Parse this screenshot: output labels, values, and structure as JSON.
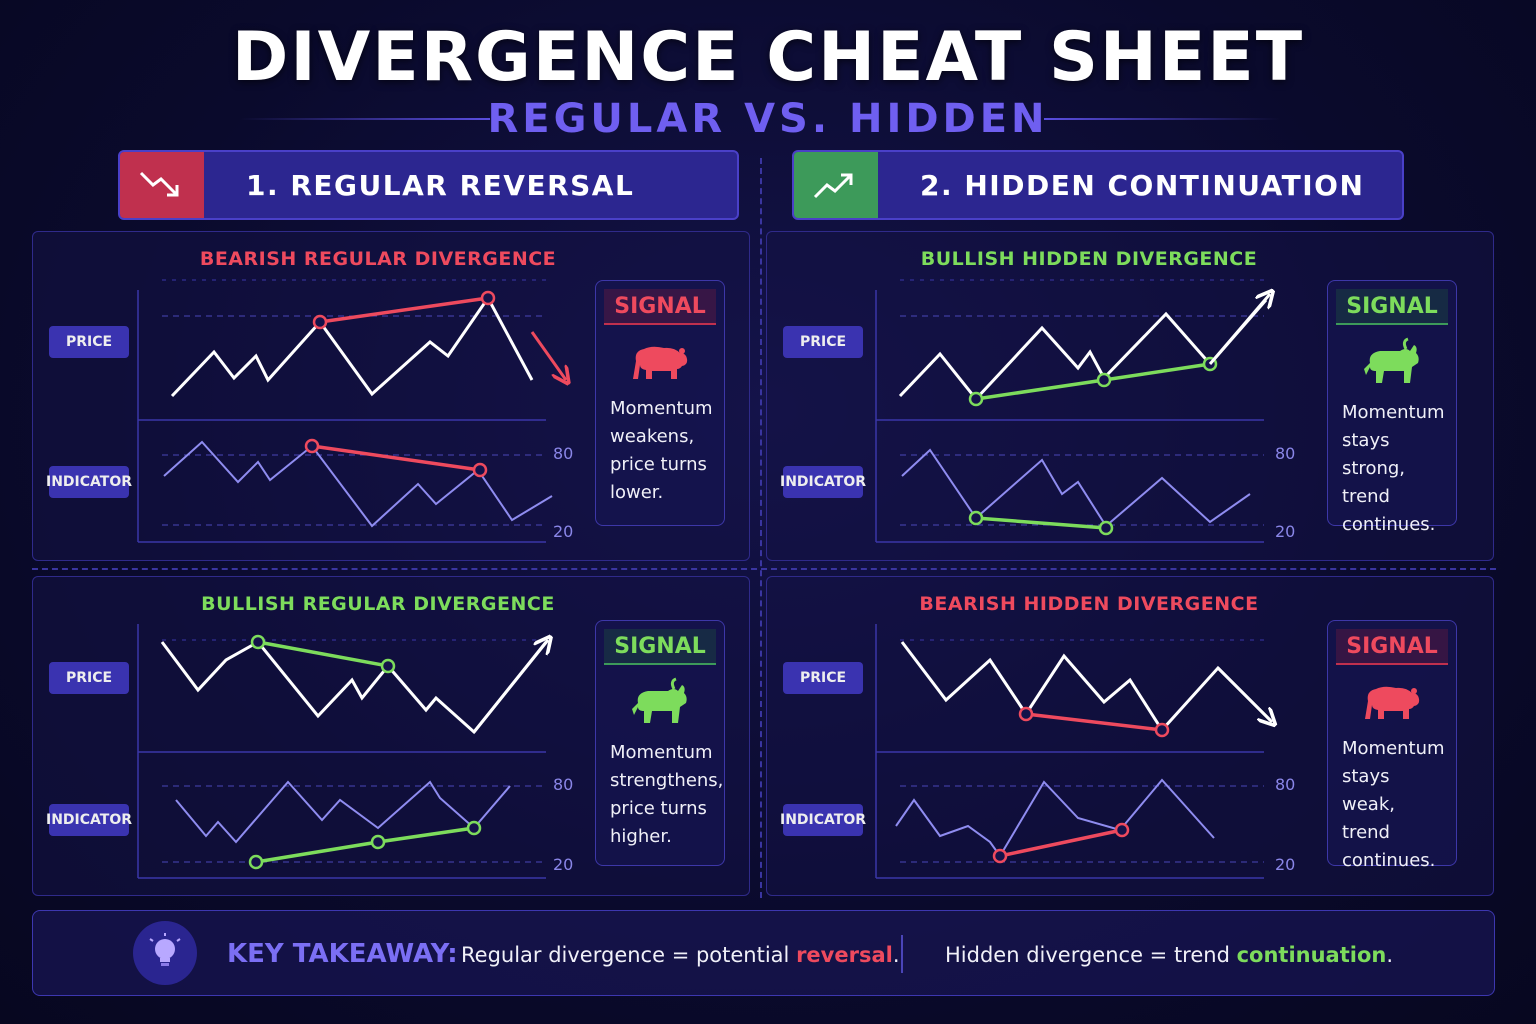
{
  "title": "DIVERGENCE CHEAT SHEET",
  "subtitle": "REGULAR VS. HIDDEN",
  "sections": [
    {
      "label": "1. REGULAR REVERSAL",
      "icon": "trend-down-icon",
      "color": "#c0304e"
    },
    {
      "label": "2. HIDDEN CONTINUATION",
      "icon": "trend-up-icon",
      "color": "#3d9a5a"
    }
  ],
  "labels": {
    "price": "PRICE",
    "indicator": "INDICATOR",
    "tick_high": "80",
    "tick_low": "20",
    "signal": "SIGNAL"
  },
  "panels": [
    {
      "title": "BEARISH REGULAR DIVERGENCE",
      "accent": "#ee4a5e",
      "animal": "bear-icon",
      "desc": [
        "Momentum",
        "weakens,",
        "price turns",
        "lower."
      ]
    },
    {
      "title": "BULLISH HIDDEN DIVERGENCE",
      "accent": "#7ddc5c",
      "animal": "bull-icon",
      "desc": [
        "Momentum",
        "stays strong,",
        "trend",
        "continues."
      ]
    },
    {
      "title": "BULLISH REGULAR DIVERGENCE",
      "accent": "#7ddc5c",
      "animal": "bull-icon",
      "desc": [
        "Momentum",
        "strengthens,",
        "price turns",
        "higher."
      ]
    },
    {
      "title": "BEARISH HIDDEN DIVERGENCE",
      "accent": "#ee4a5e",
      "animal": "bear-icon",
      "desc": [
        "Momentum",
        "stays weak,",
        "trend",
        "continues."
      ]
    }
  ],
  "takeaway": {
    "label": "KEY TAKEAWAY:",
    "left_prefix": "Regular divergence = potential ",
    "left_highlight": "reversal",
    "left_suffix": ".",
    "right_prefix": "Hidden divergence = trend ",
    "right_highlight": "continuation",
    "right_suffix": "."
  }
}
